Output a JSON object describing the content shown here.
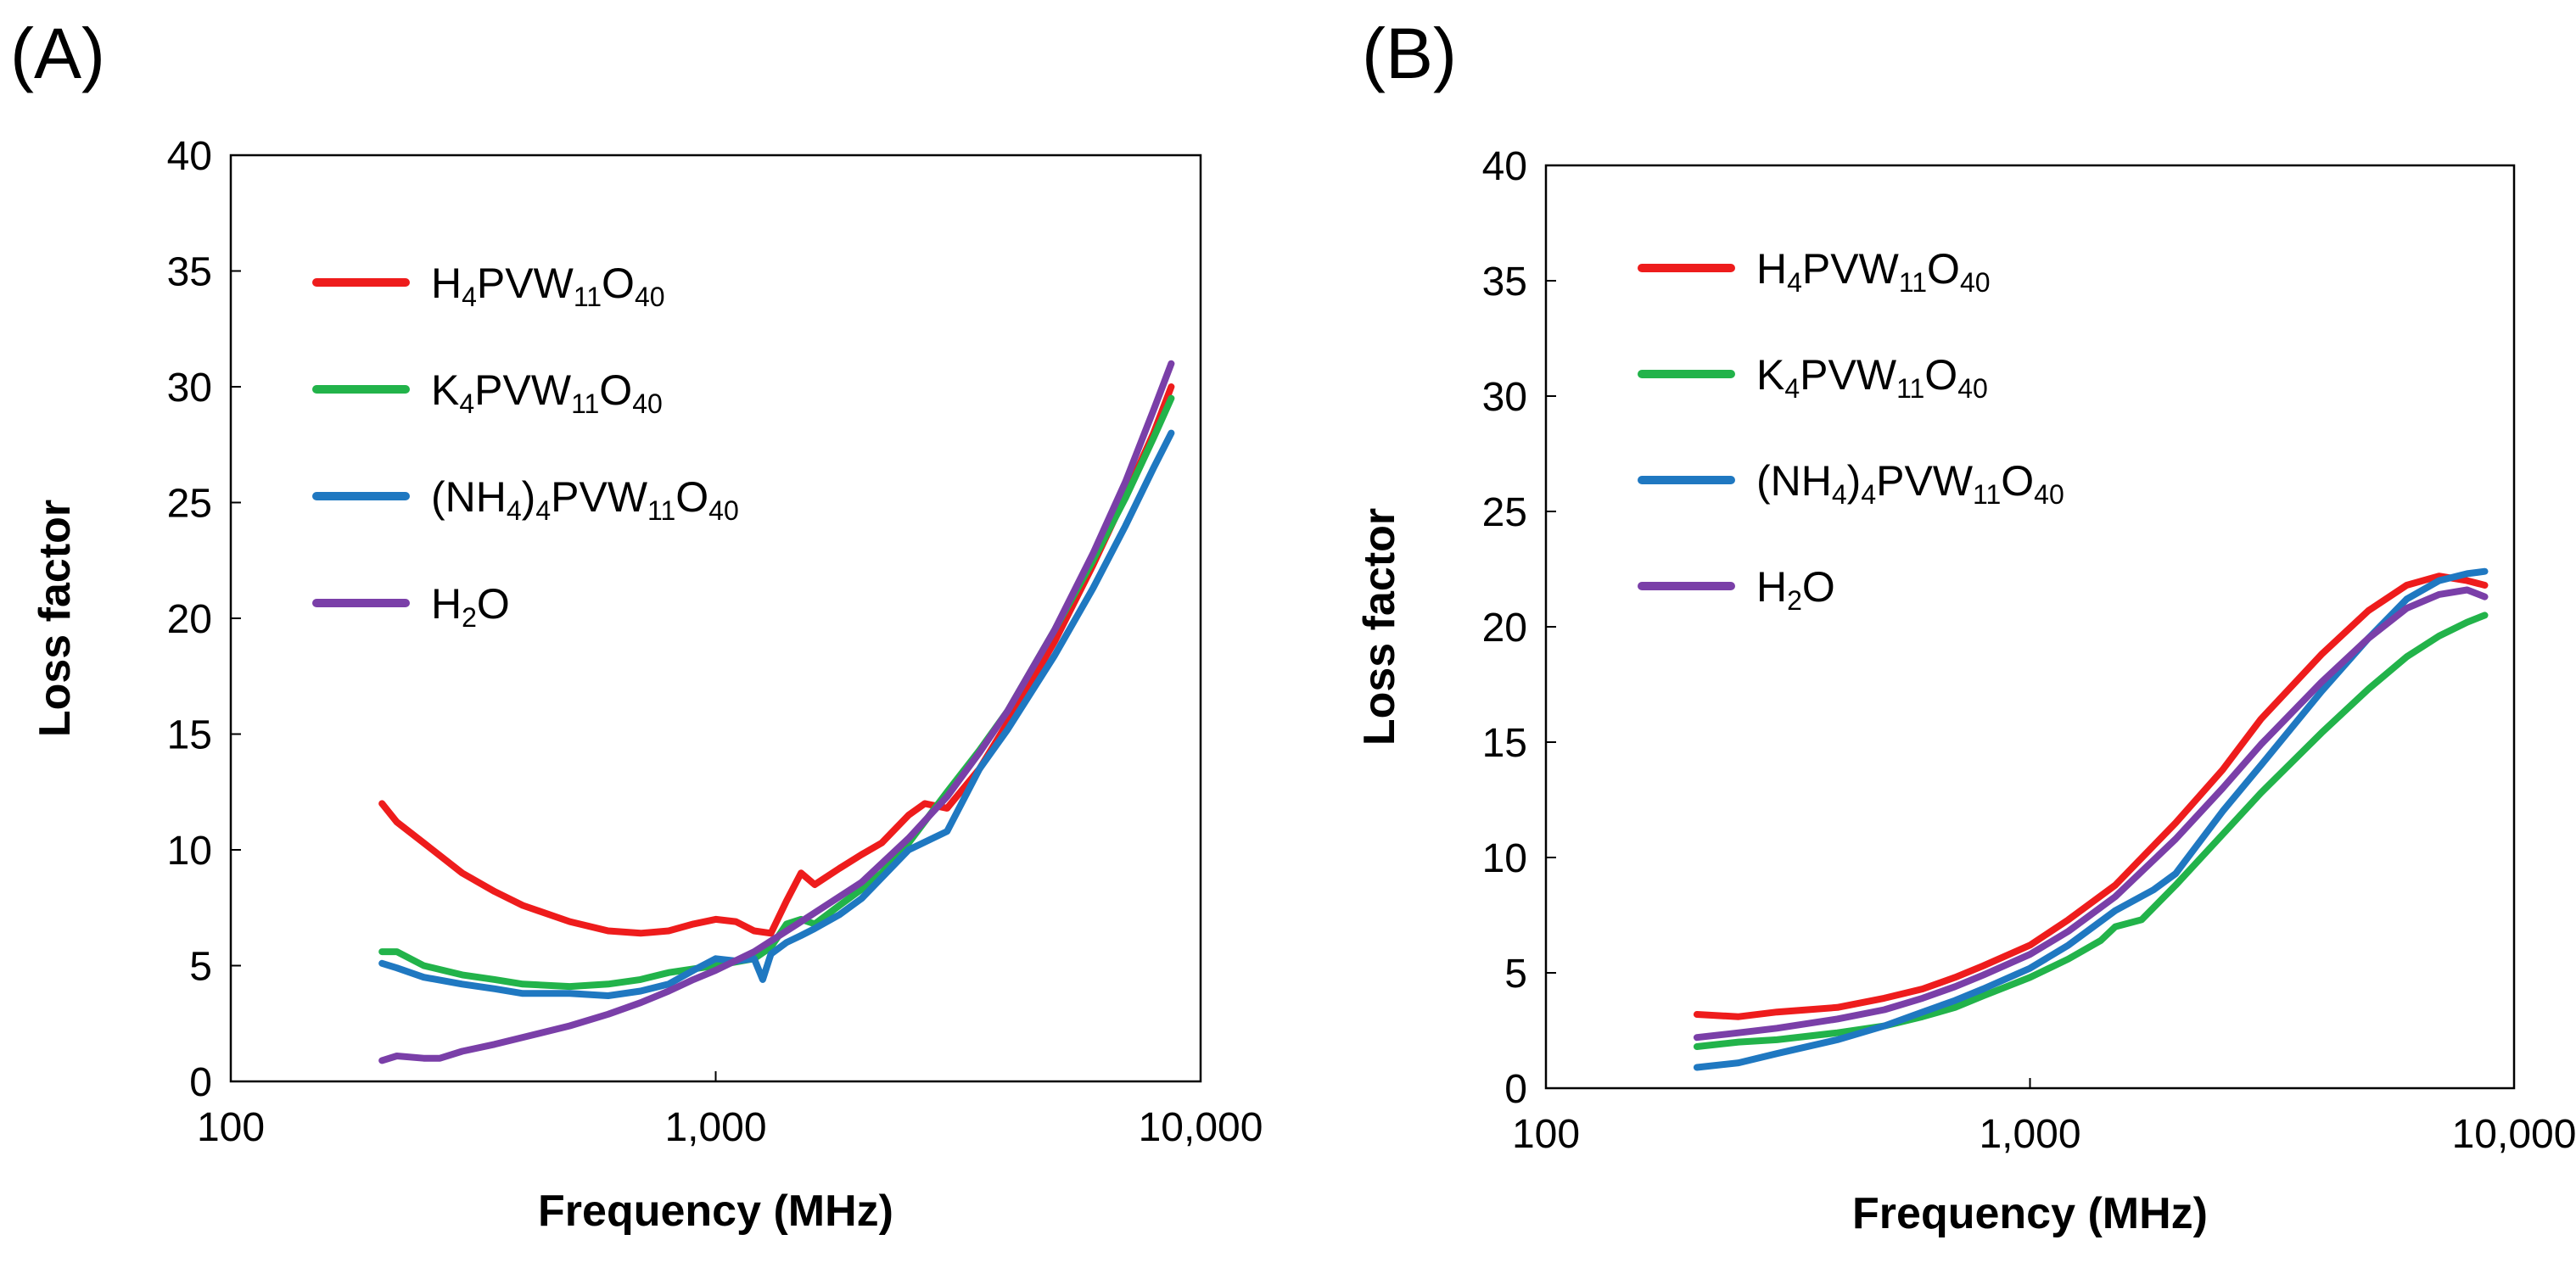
{
  "chart_data": [
    {
      "panel_label": "(A)",
      "type": "line",
      "x_scale": "log",
      "xlabel": "Frequency (MHz)",
      "ylabel": "Loss factor",
      "xlim": [
        100,
        10000
      ],
      "ylim": [
        0,
        40
      ],
      "x_ticks": [
        100,
        1000,
        10000
      ],
      "x_tick_labels": [
        "100",
        "1,000",
        "10,000"
      ],
      "y_ticks": [
        0,
        5,
        10,
        15,
        20,
        25,
        30,
        35,
        40
      ],
      "y_tick_labels": [
        "0",
        "5",
        "10",
        "15",
        "20",
        "25",
        "30",
        "35",
        "40"
      ],
      "legend_position": "top-left",
      "series": [
        {
          "name": "H4PVW11O40",
          "legend_parts": [
            [
              "H",
              ""
            ],
            [
              "4",
              "sub"
            ],
            [
              "PVW",
              ""
            ],
            [
              "11",
              "sub"
            ],
            [
              "O",
              ""
            ],
            [
              "40",
              "sub"
            ]
          ],
          "color": "#ee1c1c",
          "x": [
            205,
            220,
            250,
            300,
            350,
            400,
            500,
            600,
            700,
            800,
            900,
            1000,
            1100,
            1200,
            1300,
            1400,
            1500,
            1600,
            1800,
            2000,
            2200,
            2500,
            2700,
            3000,
            3500,
            4000,
            5000,
            6000,
            7000,
            8000,
            8700
          ],
          "y": [
            12,
            11.2,
            10.3,
            9.0,
            8.2,
            7.6,
            6.9,
            6.5,
            6.4,
            6.5,
            6.8,
            7.0,
            6.9,
            6.5,
            6.4,
            7.8,
            9.0,
            8.5,
            9.2,
            9.8,
            10.3,
            11.5,
            12.0,
            11.8,
            13.5,
            15.5,
            19.0,
            22.3,
            25.3,
            28.0,
            30.0
          ]
        },
        {
          "name": "K4PVW11O40",
          "legend_parts": [
            [
              "K",
              ""
            ],
            [
              "4",
              "sub"
            ],
            [
              "PVW",
              ""
            ],
            [
              "11",
              "sub"
            ],
            [
              "O",
              ""
            ],
            [
              "40",
              "sub"
            ]
          ],
          "color": "#22b34a",
          "x": [
            205,
            220,
            250,
            300,
            350,
            400,
            500,
            600,
            700,
            800,
            1000,
            1200,
            1300,
            1400,
            1500,
            1600,
            1800,
            2000,
            2200,
            2500,
            3000,
            3500,
            4000,
            5000,
            6000,
            7000,
            8000,
            8700
          ],
          "y": [
            5.6,
            5.6,
            5.0,
            4.6,
            4.4,
            4.2,
            4.1,
            4.2,
            4.4,
            4.7,
            5.0,
            5.3,
            5.8,
            6.8,
            7.0,
            6.8,
            7.6,
            8.3,
            9.0,
            10.3,
            12.5,
            14.3,
            16.0,
            19.5,
            22.5,
            25.2,
            27.8,
            29.5
          ]
        },
        {
          "name": "(NH4)4PVW11O40",
          "legend_parts": [
            [
              "(NH",
              ""
            ],
            [
              "4",
              "sub"
            ],
            [
              ")",
              ""
            ],
            [
              "4",
              "sub"
            ],
            [
              "PVW",
              ""
            ],
            [
              "11",
              "sub"
            ],
            [
              "O",
              ""
            ],
            [
              "40",
              "sub"
            ]
          ],
          "color": "#1f78c1",
          "x": [
            205,
            220,
            250,
            300,
            350,
            400,
            500,
            600,
            700,
            800,
            900,
            1000,
            1100,
            1200,
            1250,
            1300,
            1400,
            1500,
            1600,
            1800,
            2000,
            2200,
            2500,
            3000,
            3500,
            4000,
            5000,
            6000,
            7000,
            8000,
            8700
          ],
          "y": [
            5.1,
            4.9,
            4.5,
            4.2,
            4.0,
            3.8,
            3.8,
            3.7,
            3.9,
            4.2,
            4.8,
            5.3,
            5.2,
            5.3,
            4.4,
            5.5,
            6.0,
            6.3,
            6.6,
            7.2,
            7.9,
            8.8,
            10.0,
            10.8,
            13.5,
            15.2,
            18.4,
            21.3,
            24.0,
            26.5,
            28.0
          ]
        },
        {
          "name": "H2O",
          "legend_parts": [
            [
              "H",
              ""
            ],
            [
              "2",
              "sub"
            ],
            [
              "O",
              ""
            ]
          ],
          "color": "#7a3fa8",
          "x": [
            205,
            220,
            250,
            270,
            300,
            350,
            400,
            500,
            600,
            700,
            800,
            900,
            1000,
            1200,
            1500,
            2000,
            2500,
            3000,
            3500,
            4000,
            5000,
            6000,
            7000,
            8000,
            8700
          ],
          "y": [
            0.9,
            1.1,
            1.0,
            1.0,
            1.3,
            1.6,
            1.9,
            2.4,
            2.9,
            3.4,
            3.9,
            4.4,
            4.8,
            5.6,
            6.9,
            8.6,
            10.5,
            12.3,
            14.2,
            16.0,
            19.5,
            22.8,
            25.9,
            29.0,
            31.0
          ]
        }
      ]
    },
    {
      "panel_label": "(B)",
      "type": "line",
      "x_scale": "log",
      "xlabel": "Frequency (MHz)",
      "ylabel": "Loss factor",
      "xlim": [
        100,
        10000
      ],
      "ylim": [
        0,
        40
      ],
      "x_ticks": [
        100,
        1000,
        10000
      ],
      "x_tick_labels": [
        "100",
        "1,000",
        "10,000"
      ],
      "y_ticks": [
        0,
        5,
        10,
        15,
        20,
        25,
        30,
        35,
        40
      ],
      "y_tick_labels": [
        "0",
        "5",
        "10",
        "15",
        "20",
        "25",
        "30",
        "35",
        "40"
      ],
      "legend_position": "top-left",
      "series": [
        {
          "name": "H4PVW11O40",
          "legend_parts": [
            [
              "H",
              ""
            ],
            [
              "4",
              "sub"
            ],
            [
              "PVW",
              ""
            ],
            [
              "11",
              "sub"
            ],
            [
              "O",
              ""
            ],
            [
              "40",
              "sub"
            ]
          ],
          "color": "#ee1c1c",
          "x": [
            205,
            250,
            300,
            400,
            500,
            600,
            700,
            800,
            1000,
            1200,
            1500,
            2000,
            2500,
            3000,
            4000,
            5000,
            6000,
            7000,
            8000,
            8700
          ],
          "y": [
            3.2,
            3.1,
            3.3,
            3.5,
            3.9,
            4.3,
            4.8,
            5.3,
            6.2,
            7.3,
            8.8,
            11.5,
            13.8,
            16.0,
            18.8,
            20.7,
            21.8,
            22.2,
            22.0,
            21.8
          ]
        },
        {
          "name": "K4PVW11O40",
          "legend_parts": [
            [
              "K",
              ""
            ],
            [
              "4",
              "sub"
            ],
            [
              "PVW",
              ""
            ],
            [
              "11",
              "sub"
            ],
            [
              "O",
              ""
            ],
            [
              "40",
              "sub"
            ]
          ],
          "color": "#22b34a",
          "x": [
            205,
            250,
            300,
            400,
            500,
            600,
            700,
            800,
            1000,
            1200,
            1400,
            1500,
            1700,
            2000,
            2500,
            3000,
            4000,
            5000,
            6000,
            7000,
            8000,
            8700
          ],
          "y": [
            1.8,
            2.0,
            2.1,
            2.4,
            2.7,
            3.1,
            3.5,
            4.0,
            4.8,
            5.6,
            6.4,
            7.0,
            7.3,
            8.8,
            11.0,
            12.8,
            15.4,
            17.3,
            18.7,
            19.6,
            20.2,
            20.5
          ]
        },
        {
          "name": "(NH4)4PVW11O40",
          "legend_parts": [
            [
              "(NH",
              ""
            ],
            [
              "4",
              "sub"
            ],
            [
              ")",
              ""
            ],
            [
              "4",
              "sub"
            ],
            [
              "PVW",
              ""
            ],
            [
              "11",
              "sub"
            ],
            [
              "O",
              ""
            ],
            [
              "40",
              "sub"
            ]
          ],
          "color": "#1f78c1",
          "x": [
            205,
            250,
            300,
            400,
            500,
            600,
            700,
            800,
            1000,
            1200,
            1500,
            1800,
            2000,
            2500,
            3000,
            4000,
            5000,
            6000,
            7000,
            8000,
            8700
          ],
          "y": [
            0.9,
            1.1,
            1.5,
            2.1,
            2.7,
            3.3,
            3.8,
            4.3,
            5.2,
            6.2,
            7.7,
            8.6,
            9.3,
            12.0,
            14.0,
            17.2,
            19.5,
            21.2,
            22.0,
            22.3,
            22.4
          ]
        },
        {
          "name": "H2O",
          "legend_parts": [
            [
              "H",
              ""
            ],
            [
              "2",
              "sub"
            ],
            [
              "O",
              ""
            ]
          ],
          "color": "#7a3fa8",
          "x": [
            205,
            250,
            300,
            400,
            500,
            600,
            700,
            800,
            1000,
            1200,
            1500,
            2000,
            2500,
            3000,
            4000,
            5000,
            6000,
            7000,
            8000,
            8700
          ],
          "y": [
            2.2,
            2.4,
            2.6,
            3.0,
            3.4,
            3.9,
            4.4,
            4.9,
            5.8,
            6.8,
            8.3,
            10.8,
            13.0,
            14.9,
            17.6,
            19.5,
            20.8,
            21.4,
            21.6,
            21.3
          ]
        }
      ]
    }
  ]
}
